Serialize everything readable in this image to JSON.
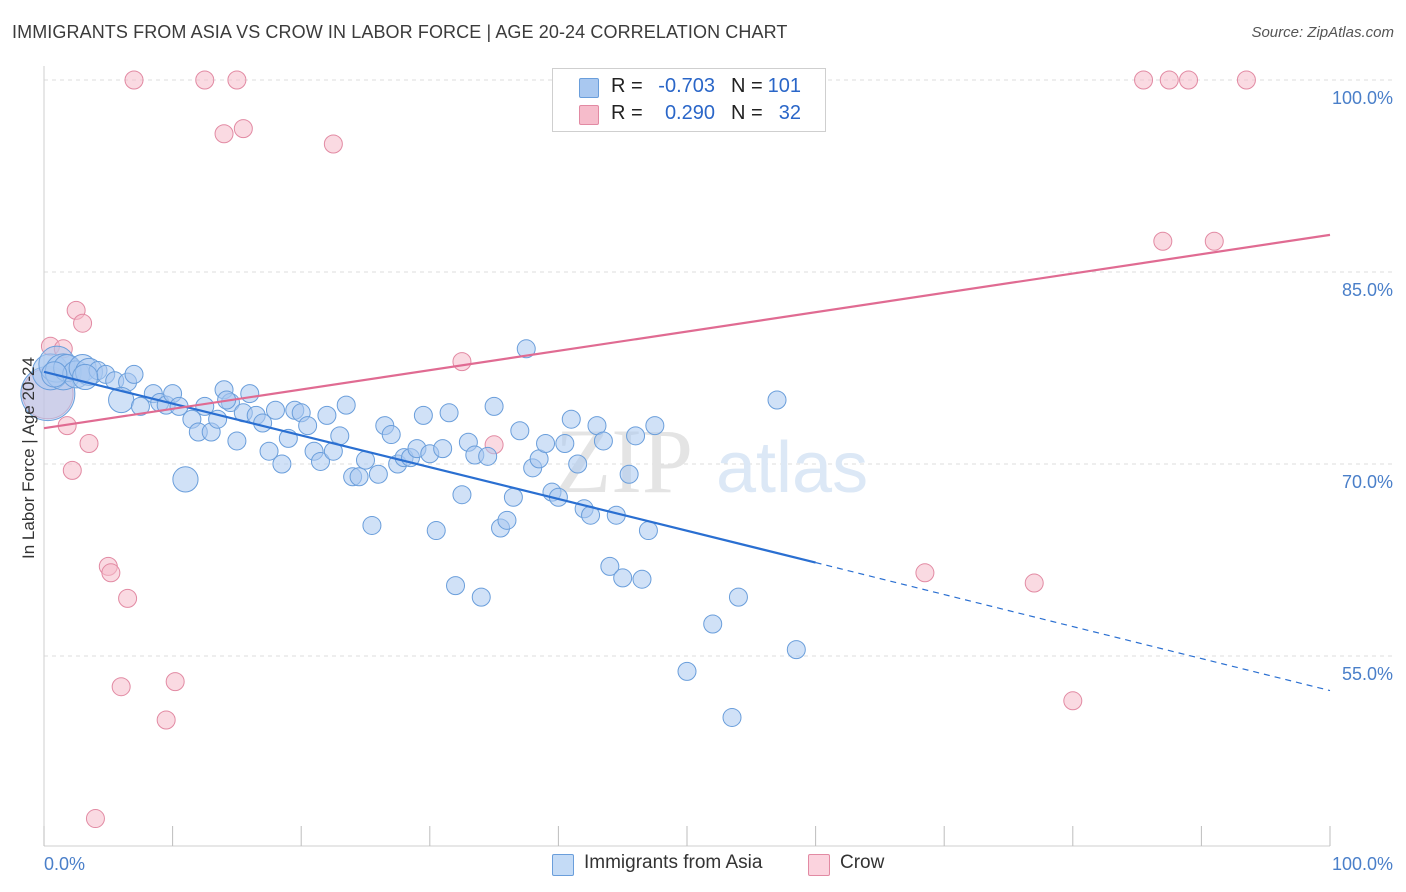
{
  "title": "IMMIGRANTS FROM ASIA VS CROW IN LABOR FORCE | AGE 20-24 CORRELATION CHART",
  "source": "Source: ZipAtlas.com",
  "watermark": {
    "zip": "ZIP",
    "atlas": "atlas"
  },
  "legend": {
    "rows": [
      {
        "r_label": "R =",
        "r_value": "-0.703",
        "n_label": "N =",
        "n_value": "101",
        "color": "#a9c8f0",
        "border": "#6a9edb"
      },
      {
        "r_label": "R =",
        "r_value": "0.290",
        "n_label": "N =",
        "n_value": "32",
        "color": "#f6bccb",
        "border": "#e28aa3"
      }
    ]
  },
  "bottom_legend": {
    "items": [
      {
        "label": "Immigrants from Asia",
        "color": "#c4dbf6",
        "border": "#6a9edb"
      },
      {
        "label": "Crow",
        "color": "#fbd3de",
        "border": "#e28aa3"
      }
    ]
  },
  "chart_data": {
    "type": "scatter",
    "title": "IMMIGRANTS FROM ASIA VS CROW IN LABOR FORCE | AGE 20-24 CORRELATION CHART",
    "xlabel": "",
    "ylabel": "In Labor Force | Age 20-24",
    "xlim": [
      0,
      100
    ],
    "ylim": [
      40,
      102
    ],
    "x_tick_labels": [
      {
        "value": 0,
        "label": "0.0%"
      },
      {
        "value": 100,
        "label": "100.0%"
      }
    ],
    "y_ticks": [
      {
        "value": 100,
        "label": "100.0%"
      },
      {
        "value": 85,
        "label": "85.0%"
      },
      {
        "value": 70,
        "label": "70.0%"
      },
      {
        "value": 55,
        "label": "55.0%"
      }
    ],
    "grid": true,
    "series": [
      {
        "name": "Immigrants from Asia",
        "color": "#a9c8f0",
        "stroke": "#6a9edb",
        "trend": {
          "x0": 0,
          "y0": 77.2,
          "x1": 60,
          "y1": 62.3,
          "dash_to_x": 100,
          "dash_to_y": 52.3,
          "color": "#2a6fd1"
        },
        "points": [
          [
            0.3,
            75.5,
            3
          ],
          [
            0.5,
            77.2,
            2
          ],
          [
            1.0,
            77.8,
            2
          ],
          [
            1.5,
            77.2,
            2
          ],
          [
            1.8,
            77.5,
            1.5
          ],
          [
            2.5,
            77.0,
            1.5
          ],
          [
            3.0,
            77.5,
            1.5
          ],
          [
            3.5,
            77.2,
            1.5
          ],
          [
            4.2,
            77.3,
            1
          ],
          [
            4.8,
            77.0,
            1
          ],
          [
            5.5,
            76.5,
            1
          ],
          [
            6.5,
            76.4,
            1
          ],
          [
            7.0,
            77.0,
            1
          ],
          [
            6.0,
            75.0,
            1.4
          ],
          [
            7.5,
            74.5,
            1
          ],
          [
            8.5,
            75.5,
            1
          ],
          [
            9.0,
            74.8,
            1
          ],
          [
            9.5,
            74.6,
            1
          ],
          [
            10.0,
            75.5,
            1
          ],
          [
            10.5,
            74.5,
            1
          ],
          [
            11.5,
            73.5,
            1
          ],
          [
            12.0,
            72.5,
            1
          ],
          [
            12.5,
            74.5,
            1
          ],
          [
            13.0,
            72.5,
            1
          ],
          [
            13.5,
            73.5,
            1
          ],
          [
            14.0,
            75.8,
            1
          ],
          [
            14.5,
            74.8,
            1
          ],
          [
            15.0,
            71.8,
            1
          ],
          [
            15.5,
            74.0,
            1
          ],
          [
            16.0,
            75.5,
            1
          ],
          [
            16.5,
            73.8,
            1
          ],
          [
            17.0,
            73.2,
            1
          ],
          [
            17.5,
            71.0,
            1
          ],
          [
            18.0,
            74.2,
            1
          ],
          [
            18.5,
            70.0,
            1
          ],
          [
            19.0,
            72.0,
            1
          ],
          [
            19.5,
            74.2,
            1
          ],
          [
            20.0,
            74.0,
            1
          ],
          [
            20.5,
            73.0,
            1
          ],
          [
            21.0,
            71.0,
            1
          ],
          [
            21.5,
            70.2,
            1
          ],
          [
            22.0,
            73.8,
            1
          ],
          [
            22.5,
            71.0,
            1
          ],
          [
            23.0,
            72.2,
            1
          ],
          [
            23.5,
            74.6,
            1
          ],
          [
            24.0,
            69.0,
            1
          ],
          [
            24.5,
            69.0,
            1
          ],
          [
            25.0,
            70.3,
            1
          ],
          [
            25.5,
            65.2,
            1
          ],
          [
            26.0,
            69.2,
            1
          ],
          [
            26.5,
            73.0,
            1
          ],
          [
            27.0,
            72.3,
            1
          ],
          [
            27.5,
            70.0,
            1
          ],
          [
            28.0,
            70.5,
            1
          ],
          [
            28.5,
            70.5,
            1
          ],
          [
            29.0,
            71.2,
            1
          ],
          [
            29.5,
            73.8,
            1
          ],
          [
            30.0,
            70.8,
            1
          ],
          [
            30.5,
            64.8,
            1
          ],
          [
            31.0,
            71.2,
            1
          ],
          [
            31.5,
            74.0,
            1
          ],
          [
            32.0,
            60.5,
            1
          ],
          [
            32.5,
            67.6,
            1
          ],
          [
            33.0,
            71.7,
            1
          ],
          [
            33.5,
            70.7,
            1
          ],
          [
            34.0,
            59.6,
            1
          ],
          [
            34.5,
            70.6,
            1
          ],
          [
            35.0,
            74.5,
            1
          ],
          [
            35.5,
            65.0,
            1
          ],
          [
            36.0,
            65.6,
            1
          ],
          [
            36.5,
            67.4,
            1
          ],
          [
            37.0,
            72.6,
            1
          ],
          [
            37.5,
            79.0,
            1
          ],
          [
            38.0,
            69.7,
            1
          ],
          [
            38.5,
            70.4,
            1
          ],
          [
            39.0,
            71.6,
            1
          ],
          [
            39.5,
            67.8,
            1
          ],
          [
            40.0,
            67.4,
            1
          ],
          [
            40.5,
            71.6,
            1
          ],
          [
            41.0,
            73.5,
            1
          ],
          [
            41.5,
            70.0,
            1
          ],
          [
            42.0,
            66.5,
            1
          ],
          [
            42.5,
            66.0,
            1
          ],
          [
            43.0,
            73.0,
            1
          ],
          [
            43.5,
            71.8,
            1
          ],
          [
            44.0,
            62.0,
            1
          ],
          [
            44.5,
            66.0,
            1
          ],
          [
            45.0,
            61.1,
            1
          ],
          [
            45.5,
            69.2,
            1
          ],
          [
            46.0,
            72.2,
            1
          ],
          [
            46.5,
            61.0,
            1
          ],
          [
            47.0,
            64.8,
            1
          ],
          [
            47.5,
            73.0,
            1
          ],
          [
            50.0,
            53.8,
            1
          ],
          [
            52.0,
            57.5,
            1
          ],
          [
            53.5,
            50.2,
            1
          ],
          [
            54.0,
            59.6,
            1
          ],
          [
            57.0,
            75.0,
            1
          ],
          [
            58.5,
            55.5,
            1
          ],
          [
            11.0,
            68.8,
            1.4
          ],
          [
            14.2,
            75.0,
            1
          ],
          [
            3.2,
            76.8,
            1.4
          ],
          [
            0.8,
            77.0,
            1.4
          ]
        ]
      },
      {
        "name": "Crow",
        "color": "#f6bccb",
        "stroke": "#e28aa3",
        "trend": {
          "x0": 0,
          "y0": 72.8,
          "x1": 100,
          "y1": 87.9,
          "color": "#e06b92"
        },
        "points": [
          [
            0.3,
            75.5,
            2.8
          ],
          [
            0.5,
            79.2,
            1
          ],
          [
            1.5,
            79.0,
            1
          ],
          [
            1.8,
            73.0,
            1
          ],
          [
            2.2,
            69.5,
            1
          ],
          [
            2.5,
            82.0,
            1
          ],
          [
            3.0,
            81.0,
            1
          ],
          [
            3.5,
            71.6,
            1
          ],
          [
            4.0,
            42.3,
            1
          ],
          [
            5.0,
            62.0,
            1
          ],
          [
            5.2,
            61.5,
            1
          ],
          [
            6.0,
            52.6,
            1
          ],
          [
            6.5,
            59.5,
            1
          ],
          [
            7.0,
            100.0,
            1
          ],
          [
            9.5,
            50.0,
            1
          ],
          [
            10.2,
            53.0,
            1
          ],
          [
            12.5,
            100.0,
            1
          ],
          [
            14.0,
            95.8,
            1
          ],
          [
            15.0,
            100.0,
            1
          ],
          [
            15.5,
            96.2,
            1
          ],
          [
            22.5,
            95.0,
            1
          ],
          [
            32.5,
            78.0,
            1
          ],
          [
            35.0,
            71.5,
            1
          ],
          [
            68.5,
            61.5,
            1
          ],
          [
            77.0,
            60.7,
            1
          ],
          [
            80.0,
            51.5,
            1
          ],
          [
            85.5,
            100.0,
            1
          ],
          [
            87.0,
            87.4,
            1
          ],
          [
            87.5,
            100.0,
            1
          ],
          [
            89.0,
            100.0,
            1
          ],
          [
            91.0,
            87.4,
            1
          ],
          [
            93.5,
            100.0,
            1
          ]
        ]
      }
    ]
  }
}
